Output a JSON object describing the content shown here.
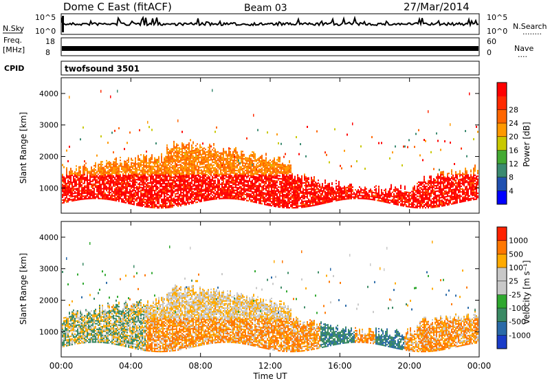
{
  "header": {
    "title": "Dome C East (fitACF)",
    "beam": "Beam 03",
    "date": "27/Mar/2014"
  },
  "sky_panel": {
    "left_label": "N.Sky",
    "right_label": "N.Search",
    "right_dots": "........",
    "y_ticks_left": [
      "10^5",
      "10^0"
    ],
    "y_ticks_right": [
      "10^5",
      "10^0"
    ]
  },
  "freq_panel": {
    "left_label_1": "Freq.",
    "left_label_2": "[MHz]",
    "right_label": "Nave",
    "right_dots": "....",
    "y_ticks_left": [
      "18",
      "8"
    ],
    "y_ticks_right": [
      "60",
      "0"
    ]
  },
  "cpid": {
    "label": "CPID",
    "program": "twofsound 3501"
  },
  "chart_data": [
    {
      "type": "heatmap",
      "name": "power",
      "ylabel": "Slant Range [km]",
      "ylim": [
        200,
        4500
      ],
      "y_ticks": [
        1000,
        2000,
        3000,
        4000
      ],
      "x_ticks": [
        "00:00",
        "04:00",
        "08:00",
        "12:00",
        "16:00",
        "20:00",
        "00:00"
      ],
      "colorbar": {
        "label": "Power [dB]",
        "ticks": [
          "4",
          "8",
          "12",
          "16",
          "20",
          "24",
          "28"
        ],
        "colors": [
          "#0000ff",
          "#2050b0",
          "#3a8a70",
          "#44aa33",
          "#c8c800",
          "#ff9900",
          "#ff6600",
          "#ff2a00",
          "#ff0000"
        ]
      }
    },
    {
      "type": "heatmap",
      "name": "velocity",
      "ylabel": "Slant Range [km]",
      "xlabel": "Time UT",
      "ylim": [
        200,
        4500
      ],
      "y_ticks": [
        1000,
        2000,
        3000,
        4000
      ],
      "x_ticks": [
        "00:00",
        "04:00",
        "08:00",
        "12:00",
        "16:00",
        "20:00",
        "00:00"
      ],
      "colorbar": {
        "label": "Velocity [m s⁻¹]",
        "ticks": [
          "1000",
          "500",
          "100",
          "25",
          "-25",
          "-100",
          "-500",
          "-1000"
        ],
        "colors": [
          "#1a3cc8",
          "#2a6aa8",
          "#3a8a64",
          "#2fa82f",
          "#c8c8c8",
          "#c8c8c8",
          "#ffaa00",
          "#ff7700",
          "#ff2200"
        ]
      }
    }
  ]
}
